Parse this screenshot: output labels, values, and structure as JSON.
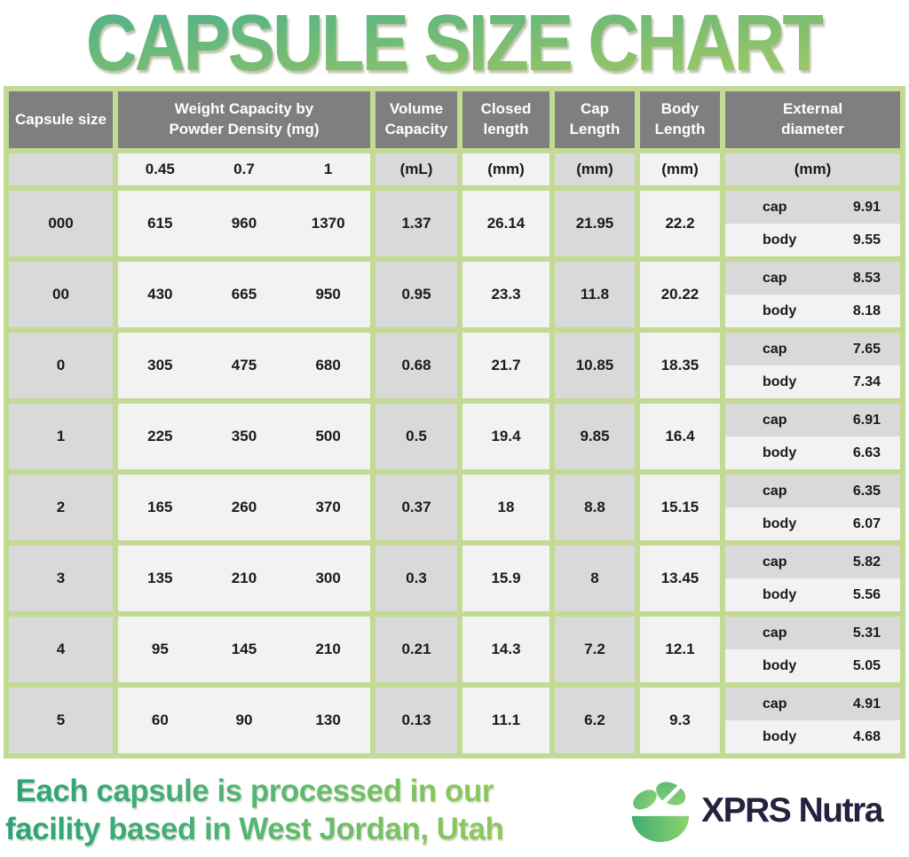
{
  "title": "CAPSULE SIZE CHART",
  "colors": {
    "border_green": "#c2da93",
    "header_gray": "#7f7f7f",
    "cell_gray": "#d9d9d9",
    "cell_white": "#f2f2f2",
    "title_gradient_top": "#4fb289",
    "title_gradient_bottom": "#a8cc5e",
    "footer_gradient_left": "#2ba377",
    "footer_gradient_right": "#8cc75e",
    "brand_navy": "#242240"
  },
  "table": {
    "headers": {
      "capsule_size": [
        "Capsule size"
      ],
      "weight_capacity": [
        "Weight Capacity by",
        "Powder Density (mg)"
      ],
      "volume_capacity": [
        "Volume",
        "Capacity"
      ],
      "closed_length": [
        "Closed",
        "length"
      ],
      "cap_length": [
        "Cap",
        "Length"
      ],
      "body_length": [
        "Body",
        "Length"
      ],
      "external_diameter": [
        "External",
        "diameter"
      ]
    },
    "units": {
      "densities": [
        "0.45",
        "0.7",
        "1"
      ],
      "volume": "(mL)",
      "closed": "(mm)",
      "cap": "(mm)",
      "body": "(mm)",
      "external": "(mm)"
    },
    "ext_labels": {
      "cap": "cap",
      "body": "body"
    },
    "rows": [
      {
        "size": "000",
        "weights": [
          "615",
          "960",
          "1370"
        ],
        "volume": "1.37",
        "closed": "26.14",
        "cap_len": "21.95",
        "body_len": "22.2",
        "ext_cap": "9.91",
        "ext_body": "9.55"
      },
      {
        "size": "00",
        "weights": [
          "430",
          "665",
          "950"
        ],
        "volume": "0.95",
        "closed": "23.3",
        "cap_len": "11.8",
        "body_len": "20.22",
        "ext_cap": "8.53",
        "ext_body": "8.18"
      },
      {
        "size": "0",
        "weights": [
          "305",
          "475",
          "680"
        ],
        "volume": "0.68",
        "closed": "21.7",
        "cap_len": "10.85",
        "body_len": "18.35",
        "ext_cap": "7.65",
        "ext_body": "7.34"
      },
      {
        "size": "1",
        "weights": [
          "225",
          "350",
          "500"
        ],
        "volume": "0.5",
        "closed": "19.4",
        "cap_len": "9.85",
        "body_len": "16.4",
        "ext_cap": "6.91",
        "ext_body": "6.63"
      },
      {
        "size": "2",
        "weights": [
          "165",
          "260",
          "370"
        ],
        "volume": "0.37",
        "closed": "18",
        "cap_len": "8.8",
        "body_len": "15.15",
        "ext_cap": "6.35",
        "ext_body": "6.07"
      },
      {
        "size": "3",
        "weights": [
          "135",
          "210",
          "300"
        ],
        "volume": "0.3",
        "closed": "15.9",
        "cap_len": "8",
        "body_len": "13.45",
        "ext_cap": "5.82",
        "ext_body": "5.56"
      },
      {
        "size": "4",
        "weights": [
          "95",
          "145",
          "210"
        ],
        "volume": "0.21",
        "closed": "14.3",
        "cap_len": "7.2",
        "body_len": "12.1",
        "ext_cap": "5.31",
        "ext_body": "5.05"
      },
      {
        "size": "5",
        "weights": [
          "60",
          "90",
          "130"
        ],
        "volume": "0.13",
        "closed": "11.1",
        "cap_len": "6.2",
        "body_len": "9.3",
        "ext_cap": "4.91",
        "ext_body": "4.68"
      }
    ]
  },
  "footer": {
    "line1": "Each capsule is processed in our",
    "line2": "facility based in West Jordan, Utah",
    "brand": "XPRS Nutra"
  },
  "chart_data": {
    "type": "table",
    "title": "CAPSULE SIZE CHART",
    "columns": [
      "Capsule size",
      "Weight capacity @ 0.45 density (mg)",
      "Weight capacity @ 0.7 density (mg)",
      "Weight capacity @ 1 density (mg)",
      "Volume capacity (mL)",
      "Closed length (mm)",
      "Cap length (mm)",
      "Body length (mm)",
      "External diameter cap (mm)",
      "External diameter body (mm)"
    ],
    "rows": [
      [
        "000",
        615,
        960,
        1370,
        1.37,
        26.14,
        21.95,
        22.2,
        9.91,
        9.55
      ],
      [
        "00",
        430,
        665,
        950,
        0.95,
        23.3,
        11.8,
        20.22,
        8.53,
        8.18
      ],
      [
        "0",
        305,
        475,
        680,
        0.68,
        21.7,
        10.85,
        18.35,
        7.65,
        7.34
      ],
      [
        "1",
        225,
        350,
        500,
        0.5,
        19.4,
        9.85,
        16.4,
        6.91,
        6.63
      ],
      [
        "2",
        165,
        260,
        370,
        0.37,
        18,
        8.8,
        15.15,
        6.35,
        6.07
      ],
      [
        "3",
        135,
        210,
        300,
        0.3,
        15.9,
        8,
        13.45,
        5.82,
        5.56
      ],
      [
        "4",
        95,
        145,
        210,
        0.21,
        14.3,
        7.2,
        12.1,
        5.31,
        5.05
      ],
      [
        "5",
        60,
        90,
        130,
        0.13,
        11.1,
        6.2,
        9.3,
        4.91,
        4.68
      ]
    ]
  }
}
